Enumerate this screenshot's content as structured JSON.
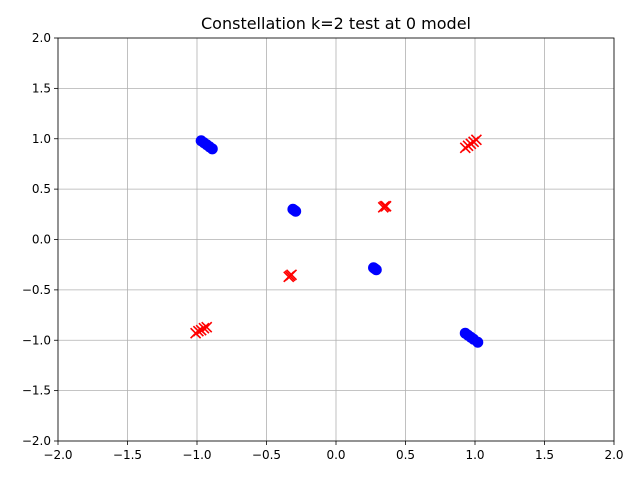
{
  "chart_data": {
    "type": "scatter",
    "title": "Constellation k=2 test at 0 model",
    "xlabel": "",
    "ylabel": "",
    "xlim": [
      -2.0,
      2.0
    ],
    "ylim": [
      -2.0,
      2.0
    ],
    "grid": true,
    "xticks": [
      "−2.0",
      "−1.5",
      "−1.0",
      "−0.5",
      "0.0",
      "0.5",
      "1.0",
      "1.5",
      "2.0"
    ],
    "yticks": [
      "−2.0",
      "−1.5",
      "−1.0",
      "−0.5",
      "0.0",
      "0.5",
      "1.0",
      "1.5",
      "2.0"
    ],
    "xtick_values": [
      -2.0,
      -1.5,
      -1.0,
      -0.5,
      0.0,
      0.5,
      1.0,
      1.5,
      2.0
    ],
    "ytick_values": [
      -2.0,
      -1.5,
      -1.0,
      -0.5,
      0.0,
      0.5,
      1.0,
      1.5,
      2.0
    ],
    "series": [
      {
        "marker": "circle",
        "color": "#0000ff",
        "points": [
          [
            -0.97,
            0.98
          ],
          [
            -0.95,
            0.96
          ],
          [
            -0.93,
            0.94
          ],
          [
            -0.91,
            0.92
          ],
          [
            -0.89,
            0.9
          ],
          [
            -0.31,
            0.3
          ],
          [
            -0.3,
            0.29
          ],
          [
            -0.29,
            0.28
          ],
          [
            0.27,
            -0.28
          ],
          [
            0.28,
            -0.29
          ],
          [
            0.29,
            -0.3
          ],
          [
            0.93,
            -0.93
          ],
          [
            0.95,
            -0.95
          ],
          [
            0.97,
            -0.97
          ],
          [
            0.99,
            -0.99
          ],
          [
            1.02,
            -1.02
          ]
        ]
      },
      {
        "marker": "x",
        "color": "#ff0000",
        "points": [
          [
            0.93,
            0.91
          ],
          [
            0.95,
            0.93
          ],
          [
            0.97,
            0.95
          ],
          [
            0.99,
            0.97
          ],
          [
            1.01,
            0.99
          ],
          [
            0.34,
            0.32
          ],
          [
            0.35,
            0.33
          ],
          [
            0.36,
            0.33
          ],
          [
            -0.33,
            -0.36
          ],
          [
            -0.32,
            -0.35
          ],
          [
            -0.34,
            -0.37
          ],
          [
            -1.01,
            -0.93
          ],
          [
            -0.99,
            -0.91
          ],
          [
            -0.97,
            -0.9
          ],
          [
            -0.95,
            -0.88
          ],
          [
            -0.93,
            -0.87
          ]
        ]
      }
    ]
  }
}
